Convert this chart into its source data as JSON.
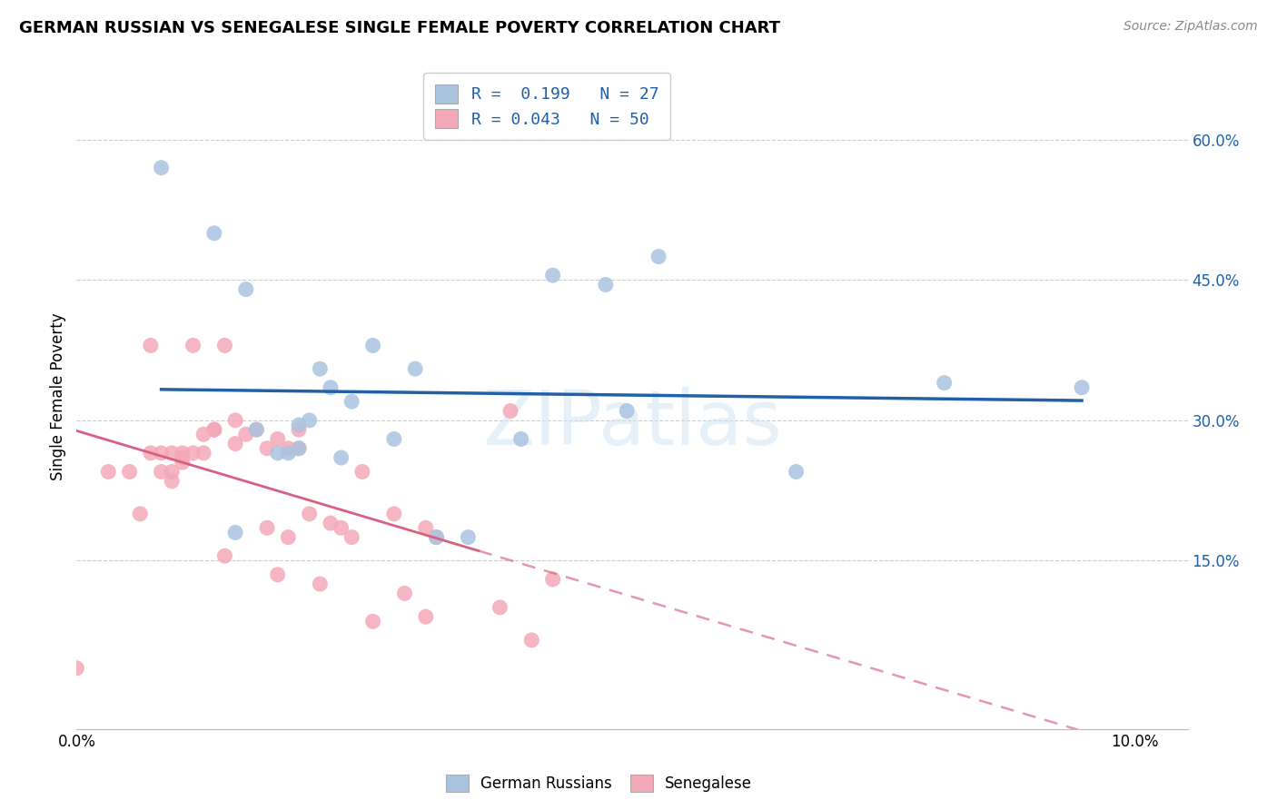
{
  "title": "GERMAN RUSSIAN VS SENEGALESE SINGLE FEMALE POVERTY CORRELATION CHART",
  "source": "Source: ZipAtlas.com",
  "ylabel": "Single Female Poverty",
  "xlim": [
    0.0,
    0.105
  ],
  "ylim": [
    -0.03,
    0.68
  ],
  "yticks": [
    0.15,
    0.3,
    0.45,
    0.6
  ],
  "ytick_labels": [
    "15.0%",
    "30.0%",
    "45.0%",
    "60.0%"
  ],
  "xticks": [
    0.0,
    0.02,
    0.04,
    0.06,
    0.08,
    0.1
  ],
  "xtick_labels": [
    "0.0%",
    "",
    "",
    "",
    "",
    "10.0%"
  ],
  "blue_scatter_color": "#aac4e0",
  "pink_scatter_color": "#f4a8b8",
  "blue_line_color": "#2060a8",
  "pink_line_color": "#d86080",
  "watermark": "ZIPatlas",
  "gr_x": [
    0.008,
    0.013,
    0.016,
    0.019,
    0.02,
    0.021,
    0.022,
    0.023,
    0.024,
    0.025,
    0.026,
    0.028,
    0.03,
    0.032,
    0.034,
    0.037,
    0.042,
    0.045,
    0.05,
    0.052,
    0.055,
    0.068,
    0.082,
    0.095,
    0.017,
    0.021,
    0.015
  ],
  "gr_y": [
    0.57,
    0.5,
    0.44,
    0.265,
    0.265,
    0.295,
    0.3,
    0.355,
    0.335,
    0.26,
    0.32,
    0.38,
    0.28,
    0.355,
    0.175,
    0.175,
    0.28,
    0.455,
    0.445,
    0.31,
    0.475,
    0.245,
    0.34,
    0.335,
    0.29,
    0.27,
    0.18
  ],
  "sn_x": [
    0.003,
    0.005,
    0.006,
    0.007,
    0.007,
    0.008,
    0.008,
    0.009,
    0.009,
    0.009,
    0.01,
    0.01,
    0.01,
    0.011,
    0.011,
    0.012,
    0.012,
    0.013,
    0.013,
    0.014,
    0.014,
    0.015,
    0.015,
    0.016,
    0.017,
    0.018,
    0.018,
    0.019,
    0.019,
    0.02,
    0.02,
    0.021,
    0.021,
    0.022,
    0.023,
    0.024,
    0.025,
    0.026,
    0.027,
    0.028,
    0.03,
    0.031,
    0.033,
    0.033,
    0.034,
    0.04,
    0.041,
    0.043,
    0.045,
    0.0
  ],
  "sn_y": [
    0.245,
    0.245,
    0.2,
    0.265,
    0.38,
    0.265,
    0.245,
    0.265,
    0.245,
    0.235,
    0.265,
    0.26,
    0.255,
    0.265,
    0.38,
    0.265,
    0.285,
    0.29,
    0.29,
    0.155,
    0.38,
    0.275,
    0.3,
    0.285,
    0.29,
    0.27,
    0.185,
    0.28,
    0.135,
    0.27,
    0.175,
    0.27,
    0.29,
    0.2,
    0.125,
    0.19,
    0.185,
    0.175,
    0.245,
    0.085,
    0.2,
    0.115,
    0.09,
    0.185,
    0.175,
    0.1,
    0.31,
    0.065,
    0.13,
    0.035
  ]
}
